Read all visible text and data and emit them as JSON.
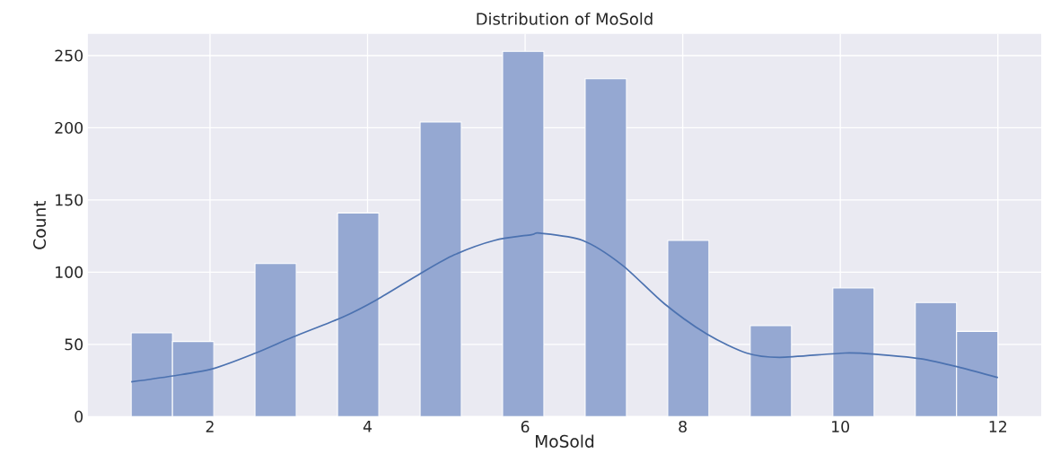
{
  "chart_data": {
    "type": "histogram",
    "title": "Distribution of MoSold",
    "xlabel": "MoSold",
    "ylabel": "Count",
    "series": [
      {
        "type": "histogram",
        "color": "#95a8d2",
        "bins": [
          1,
          1.524,
          2.048,
          2.571,
          3.095,
          3.619,
          4.143,
          4.667,
          5.19,
          5.714,
          6.238,
          6.762,
          7.286,
          7.81,
          8.333,
          8.857,
          9.381,
          9.905,
          10.429,
          10.952,
          11.476,
          12
        ],
        "values": [
          58,
          52,
          0,
          106,
          0,
          141,
          0,
          204,
          0,
          253,
          0,
          234,
          0,
          122,
          0,
          63,
          0,
          89,
          0,
          79,
          59
        ]
      },
      {
        "type": "line",
        "color": "#4c72b0",
        "x": [
          1.0,
          1.51,
          2.03,
          2.58,
          3.05,
          3.69,
          4.12,
          4.67,
          5.1,
          5.61,
          6.08,
          6.19,
          6.73,
          7.23,
          7.77,
          8.31,
          8.81,
          9.23,
          10.06,
          10.48,
          11.02,
          11.52,
          12.0
        ],
        "values": [
          24,
          28,
          33,
          44,
          55,
          69,
          81,
          99,
          112,
          122,
          126,
          127,
          122,
          105,
          78,
          57,
          44,
          41,
          44,
          43,
          40,
          34,
          27
        ]
      }
    ],
    "xlim": [
      0.45,
      12.55
    ],
    "ylim": [
      0,
      265
    ],
    "xticks": [
      2,
      4,
      6,
      8,
      10,
      12
    ],
    "yticks": [
      0,
      50,
      100,
      150,
      200,
      250
    ],
    "grid": true
  }
}
